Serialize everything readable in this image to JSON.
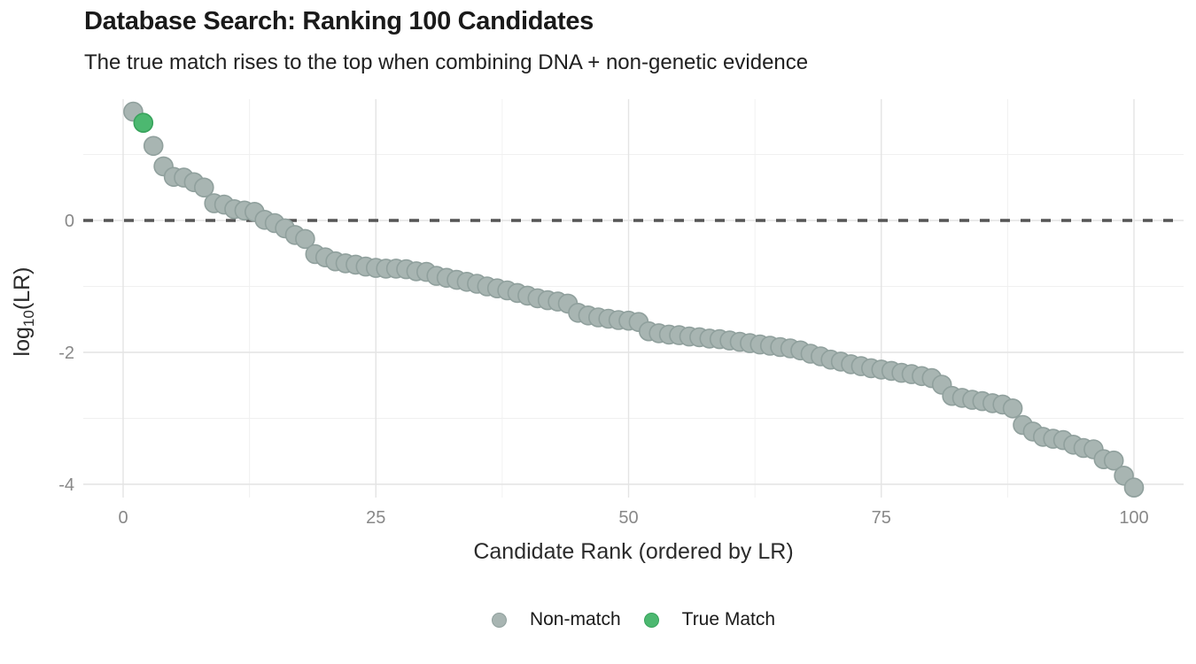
{
  "chart_data": {
    "type": "scatter",
    "title": "Database Search: Ranking 100 Candidates",
    "subtitle": "The true match rises to the top when combining DNA + non-genetic evidence",
    "xlabel": "Candidate Rank (ordered by LR)",
    "ylabel": "log10(LR)",
    "ylabel_parts": {
      "pre": "log",
      "sub": "10",
      "post": "(LR)"
    },
    "x_ticks": [
      0,
      25,
      50,
      75,
      100
    ],
    "x_minor_gridlines": [
      12.5,
      37.5,
      62.5,
      87.5
    ],
    "y_ticks": [
      0,
      -2,
      -4
    ],
    "y_minor_gridlines": [
      1,
      -1,
      -3
    ],
    "xlim": [
      -4,
      104.5
    ],
    "ylim": [
      -4.2,
      1.84
    ],
    "grid": true,
    "legend_position": "bottom",
    "reference_line_y": 0,
    "rank_start": 1,
    "true_match_rank": 2,
    "log10_lr": [
      1.65,
      1.48,
      1.13,
      0.82,
      0.66,
      0.65,
      0.58,
      0.5,
      0.26,
      0.24,
      0.17,
      0.15,
      0.13,
      0.01,
      -0.04,
      -0.12,
      -0.22,
      -0.28,
      -0.51,
      -0.56,
      -0.62,
      -0.65,
      -0.67,
      -0.7,
      -0.72,
      -0.73,
      -0.73,
      -0.74,
      -0.77,
      -0.78,
      -0.84,
      -0.87,
      -0.9,
      -0.93,
      -0.96,
      -1.0,
      -1.03,
      -1.06,
      -1.1,
      -1.14,
      -1.18,
      -1.21,
      -1.23,
      -1.26,
      -1.4,
      -1.44,
      -1.47,
      -1.49,
      -1.51,
      -1.52,
      -1.54,
      -1.68,
      -1.71,
      -1.73,
      -1.74,
      -1.76,
      -1.77,
      -1.79,
      -1.8,
      -1.82,
      -1.84,
      -1.86,
      -1.88,
      -1.9,
      -1.92,
      -1.94,
      -1.97,
      -2.02,
      -2.06,
      -2.11,
      -2.14,
      -2.18,
      -2.21,
      -2.24,
      -2.26,
      -2.28,
      -2.31,
      -2.33,
      -2.36,
      -2.39,
      -2.49,
      -2.66,
      -2.69,
      -2.72,
      -2.74,
      -2.77,
      -2.79,
      -2.85,
      -3.1,
      -3.2,
      -3.28,
      -3.31,
      -3.33,
      -3.4,
      -3.45,
      -3.47,
      -3.62,
      -3.64,
      -3.87,
      -4.05
    ],
    "legend": [
      {
        "label": "Non-match",
        "fill": "#a8b5b2",
        "stroke": "#90a09d"
      },
      {
        "label": "True Match",
        "fill": "#4cb870",
        "stroke": "#38a35c"
      }
    ],
    "colors": {
      "reference_line": "#555555",
      "grid_major": "#e4e4e4",
      "grid_minor": "#f0f0f0",
      "tick_label": "#888888",
      "axis_title": "#2b2b2b",
      "title_text": "#1a1a1a"
    }
  }
}
